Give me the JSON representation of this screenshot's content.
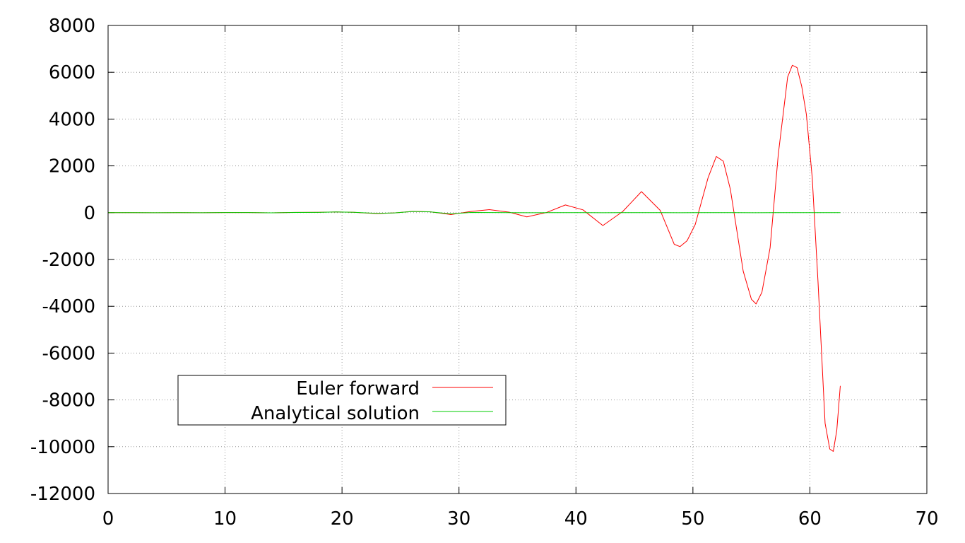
{
  "chart_data": {
    "type": "line",
    "title": "",
    "xlabel": "",
    "ylabel": "",
    "xlim": [
      0,
      70
    ],
    "ylim": [
      -12000,
      8000
    ],
    "xticks": [
      0,
      10,
      20,
      30,
      40,
      50,
      60,
      70
    ],
    "yticks": [
      8000,
      6000,
      4000,
      2000,
      0,
      -2000,
      -4000,
      -6000,
      -8000,
      -10000,
      -12000
    ],
    "xtick_labels": [
      "0",
      "10",
      "20",
      "30",
      "40",
      "50",
      "60",
      "70"
    ],
    "ytick_labels": [
      "8000",
      "6000",
      "4000",
      "2000",
      "0",
      "-2000",
      "-4000",
      "-6000",
      "-8000",
      "-10000",
      "-12000"
    ],
    "grid": true,
    "legend_position": "bottom-left",
    "series": [
      {
        "name": "Euler forward",
        "color": "#ff0000",
        "x": [
          0,
          2,
          4,
          6,
          8,
          10,
          12,
          14,
          16,
          18,
          19.5,
          21,
          23,
          24.5,
          26,
          27.5,
          29.3,
          31,
          32.6,
          34.3,
          35.8,
          37.5,
          39.1,
          40.6,
          42.3,
          44,
          45.6,
          47.2,
          48.4,
          48.9,
          49.5,
          50.2,
          51.3,
          52,
          52.6,
          53.2,
          54.3,
          55,
          55.4,
          55.9,
          56.6,
          57.3,
          58.1,
          58.5,
          58.9,
          59.3,
          59.7,
          60.2,
          60.7,
          61.3,
          61.7,
          62,
          62.3,
          62.6
        ],
        "values": [
          0,
          1,
          -2,
          3,
          -3,
          4,
          6,
          -8,
          12,
          16,
          30,
          15,
          -40,
          -10,
          55,
          40,
          -80,
          50,
          130,
          20,
          -180,
          10,
          330,
          120,
          -550,
          50,
          900,
          100,
          -1350,
          -1450,
          -1200,
          -500,
          1500,
          2400,
          2200,
          1000,
          -2500,
          -3700,
          -3900,
          -3400,
          -1500,
          2500,
          5800,
          6300,
          6200,
          5400,
          4200,
          1500,
          -3000,
          -9000,
          -10100,
          -10200,
          -9300,
          -7400
        ]
      },
      {
        "name": "Analytical solution",
        "color": "#00cc00",
        "x": [
          0,
          2,
          4,
          6,
          8,
          10,
          12,
          14,
          16,
          18,
          19.5,
          21,
          23,
          24.5,
          26,
          27.5,
          29.3,
          31,
          32.6,
          34.3,
          35.8,
          37.5,
          39.1,
          40.6,
          42.3,
          44,
          45.6,
          47.2,
          48.9,
          50.5,
          52,
          53.6,
          55.3,
          57,
          58.5,
          60,
          61.3,
          62.6
        ],
        "values": [
          0,
          1,
          -2,
          3,
          -3,
          4,
          6,
          -8,
          10,
          14,
          30,
          15,
          -30,
          -10,
          50,
          35,
          -50,
          10,
          6,
          0,
          -4,
          0,
          3,
          0,
          -2,
          0,
          2,
          0,
          -1,
          0,
          1,
          0,
          -1,
          0,
          1,
          0,
          0,
          0
        ]
      }
    ]
  }
}
